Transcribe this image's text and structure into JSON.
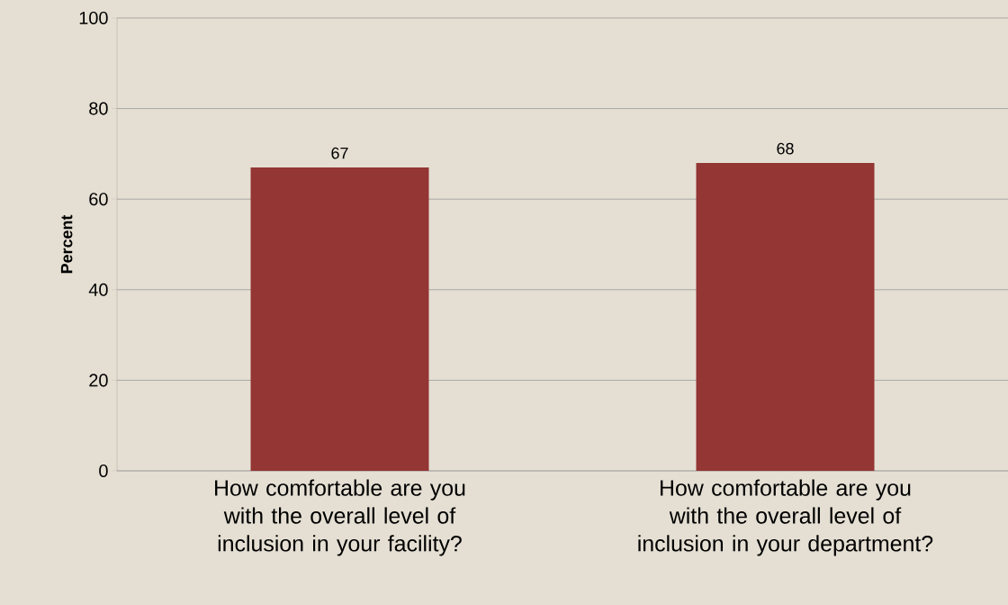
{
  "chart_data": {
    "type": "bar",
    "ylabel": "Percent",
    "categories": [
      "How comfortable are you with the overall level of inclusion in your facility?",
      "How comfortable are you with the overall level of inclusion in your department?"
    ],
    "values": [
      67,
      68
    ],
    "color": "#943634",
    "ylim": [
      0,
      100
    ],
    "yticks": [
      0,
      20,
      40,
      60,
      80,
      100
    ],
    "grid": "y",
    "data_labels": true
  }
}
